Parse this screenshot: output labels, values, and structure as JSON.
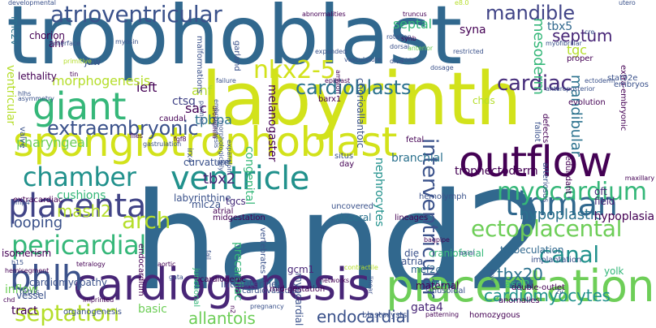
{
  "palette": {
    "dark_purple": "#440154",
    "indigo": "#3b528b",
    "steel_blue": "#31688e",
    "teal": "#21918c",
    "sea_green": "#35b779",
    "light_green": "#90d743",
    "yellow": "#fde725"
  },
  "words": [
    {
      "text": "trophoblast",
      "color": "#31688e"
    },
    {
      "text": "labyrinth",
      "color": "#d2e21b"
    },
    {
      "text": "hand2",
      "color": "#31688e"
    },
    {
      "text": "spongiotrophoblast",
      "color": "#d2e21b"
    },
    {
      "text": "cardiogenesis",
      "color": "#482677"
    },
    {
      "text": "placentation",
      "color": "#6ece58"
    },
    {
      "text": "outflow",
      "color": "#440154"
    },
    {
      "text": "ventricle",
      "color": "#21918c"
    },
    {
      "text": "tinman",
      "color": "#31688e"
    },
    {
      "text": "giant",
      "color": "#35b779"
    },
    {
      "text": "atrioventricular",
      "color": "#3b528b"
    },
    {
      "text": "myocardium",
      "color": "#35b779"
    },
    {
      "text": "placenta",
      "color": "#414487"
    },
    {
      "text": "chamber",
      "color": "#21918c"
    },
    {
      "text": "bhlh",
      "color": "#3b528b"
    },
    {
      "text": "pericardial",
      "color": "#35b779"
    },
    {
      "text": "ectoplacental",
      "color": "#6ece58"
    },
    {
      "text": "nkx2-5",
      "color": "#d2e21b"
    },
    {
      "text": "mandible",
      "color": "#414487"
    },
    {
      "text": "cardioblasts",
      "color": "#2c728e"
    },
    {
      "text": "extraembryonic",
      "color": "#3b528b"
    },
    {
      "text": "septation",
      "color": "#b5de2b"
    },
    {
      "text": "arch",
      "color": "#b5de2b"
    },
    {
      "text": "interventricular",
      "color": "#3b528b"
    },
    {
      "text": "canal",
      "color": "#21918c"
    },
    {
      "text": "cardiac",
      "color": "#472d7b"
    },
    {
      "text": "septum",
      "color": "#482677"
    },
    {
      "text": "tbx20",
      "color": "#2c728e"
    },
    {
      "text": "cardiomyocytes",
      "color": "#21918c"
    },
    {
      "text": "endocardial",
      "color": "#3b528b"
    },
    {
      "text": "allantois",
      "color": "#6ece58"
    },
    {
      "text": "hypoplastic",
      "color": "#2c728e"
    },
    {
      "text": "looping",
      "color": "#3b528b"
    },
    {
      "text": "mash2",
      "color": "#b5de2b"
    },
    {
      "text": "tbx2",
      "color": "#482677"
    },
    {
      "text": "mesoderm",
      "color": "#35b779"
    },
    {
      "text": "mandibular",
      "color": "#2c728e"
    },
    {
      "text": "tbx5",
      "color": "#31688e"
    },
    {
      "text": "syna",
      "color": "#440154"
    },
    {
      "text": "septal",
      "color": "#35b779"
    },
    {
      "text": "tgc",
      "color": "#b5de2b"
    },
    {
      "text": "left",
      "color": "#440154"
    },
    {
      "text": "ctsq",
      "color": "#414487"
    },
    {
      "text": "anf",
      "color": "#b5de2b"
    },
    {
      "text": "tpbpa",
      "color": "#2c728e"
    },
    {
      "text": "morphogenesis",
      "color": "#b5de2b"
    },
    {
      "text": "pharyngeal",
      "color": "#6ece58"
    },
    {
      "text": "sac",
      "color": "#440154"
    },
    {
      "text": "branchial",
      "color": "#2c728e"
    },
    {
      "text": "trophectoderm",
      "color": "#440154"
    },
    {
      "text": "nephrocytes",
      "color": "#21918c"
    },
    {
      "text": "cushions",
      "color": "#35b779"
    },
    {
      "text": "labyrinthine",
      "color": "#3b528b"
    },
    {
      "text": "tgcs",
      "color": "#472d7b"
    },
    {
      "text": "mlc2a",
      "color": "#3b528b"
    },
    {
      "text": "visceral",
      "color": "#2c728e"
    },
    {
      "text": "oft",
      "color": "#482677"
    },
    {
      "text": "field",
      "color": "#482677"
    },
    {
      "text": "hypoplasia",
      "color": "#440154"
    },
    {
      "text": "trabeculation",
      "color": "#31688e"
    },
    {
      "text": "die",
      "color": "#3b528b"
    },
    {
      "text": "craniofacial",
      "color": "#35b779"
    },
    {
      "text": "tube",
      "color": "#35b779"
    },
    {
      "text": "ascl2",
      "color": "#35b779"
    },
    {
      "text": "mef2c",
      "color": "#31688e"
    },
    {
      "text": "atria",
      "color": "#3b528b"
    },
    {
      "text": "maternal",
      "color": "#440154"
    },
    {
      "text": "yolk",
      "color": "#35b779"
    },
    {
      "text": "gata4",
      "color": "#482677"
    },
    {
      "text": "gcm1",
      "color": "#482677"
    },
    {
      "text": "precardiac",
      "color": "#35b779"
    },
    {
      "text": "myocardial",
      "color": "#3b528b"
    },
    {
      "text": "cardiomyopathy",
      "color": "#3b528b"
    },
    {
      "text": "inflow",
      "color": "#6ece58"
    },
    {
      "text": "tract",
      "color": "#440154"
    },
    {
      "text": "vessel",
      "color": "#3b528b"
    },
    {
      "text": "basic",
      "color": "#6ece58"
    },
    {
      "text": "intrauterine",
      "color": "#3b528b"
    },
    {
      "text": "junctional",
      "color": "#35b779"
    },
    {
      "text": "isomerism",
      "color": "#440154"
    },
    {
      "text": "extracardiac",
      "color": "#440154"
    },
    {
      "text": "chorion",
      "color": "#440154"
    },
    {
      "text": "jaw",
      "color": "#3b528b"
    },
    {
      "text": "ahf",
      "color": "#440154"
    },
    {
      "text": "mlc2v",
      "color": "#2c728e"
    },
    {
      "text": "lethality",
      "color": "#440154"
    },
    {
      "text": "ventricular",
      "color": "#b5de2b"
    },
    {
      "text": "valve",
      "color": "#3b528b"
    },
    {
      "text": "congenital",
      "color": "#35b779"
    },
    {
      "text": "garland",
      "color": "#3b528b"
    },
    {
      "text": "malformations",
      "color": "#3b528b"
    },
    {
      "text": "melanogaster",
      "color": "#440154"
    },
    {
      "text": "barx1",
      "color": "#440154"
    },
    {
      "text": "chorioallantoic",
      "color": "#3b528b"
    },
    {
      "text": "vertebrates",
      "color": "#3b528b"
    },
    {
      "text": "curvature",
      "color": "#3b528b"
    },
    {
      "text": "atrial",
      "color": "#440154"
    },
    {
      "text": "midgestation",
      "color": "#440154"
    },
    {
      "text": "uncovered",
      "color": "#3b528b"
    },
    {
      "text": "chds",
      "color": "#b5de2b"
    },
    {
      "text": "proper",
      "color": "#440154"
    },
    {
      "text": "evolution",
      "color": "#440154"
    },
    {
      "text": "extra-embryonic",
      "color": "#440154"
    },
    {
      "text": "embryos",
      "color": "#3b528b"
    },
    {
      "text": "stat92e",
      "color": "#3b528b"
    },
    {
      "text": "arteriosus",
      "color": "#3b528b"
    },
    {
      "text": "fallot",
      "color": "#3b528b"
    },
    {
      "text": "defects",
      "color": "#440154"
    },
    {
      "text": "situs",
      "color": "#3b528b"
    },
    {
      "text": "day",
      "color": "#440154"
    },
    {
      "text": "fetal",
      "color": "#440154"
    },
    {
      "text": "hemolymph",
      "color": "#3b528b"
    },
    {
      "text": "lineages",
      "color": "#440154"
    },
    {
      "text": "cardiogenic",
      "color": "#440154"
    },
    {
      "text": "cardiovascular",
      "color": "#3b528b"
    },
    {
      "text": "mid-gestation",
      "color": "#440154"
    },
    {
      "text": "sinusoidal",
      "color": "#3b528b"
    },
    {
      "text": "double-outlet",
      "color": "#440154"
    },
    {
      "text": "implantation",
      "color": "#3b528b"
    },
    {
      "text": "homozygous",
      "color": "#440154"
    },
    {
      "text": "anomalies",
      "color": "#440154"
    },
    {
      "text": "blastocysts",
      "color": "#3b528b"
    },
    {
      "text": "organogenesis",
      "color": "#3b528b"
    },
    {
      "text": "endocardium",
      "color": "#440154"
    },
    {
      "text": "hemisegment",
      "color": "#440154"
    },
    {
      "text": "flies",
      "color": "#440154"
    },
    {
      "text": "gastrulation",
      "color": "#3b528b"
    },
    {
      "text": "h15",
      "color": "#3b528b"
    },
    {
      "text": "tetralogy",
      "color": "#440154"
    },
    {
      "text": "fetus",
      "color": "#3b528b"
    },
    {
      "text": "chd",
      "color": "#440154"
    },
    {
      "text": "aortic",
      "color": "#440154"
    },
    {
      "text": "contractile",
      "color": "#b5de2b"
    },
    {
      "text": "networks",
      "color": "#440154"
    },
    {
      "text": "linear",
      "color": "#3b528b"
    },
    {
      "text": "patterning",
      "color": "#440154"
    },
    {
      "text": "layer",
      "color": "#3b528b"
    },
    {
      "text": "pregnancy",
      "color": "#3b528b"
    },
    {
      "text": "hlhs",
      "color": "#3b528b"
    },
    {
      "text": "fgf8",
      "color": "#440154"
    },
    {
      "text": "irx4",
      "color": "#3b528b"
    },
    {
      "text": "myosin",
      "color": "#3b528b"
    },
    {
      "text": "interface",
      "color": "#3b528b"
    },
    {
      "text": "developmental",
      "color": "#3b528b"
    },
    {
      "text": "truncus",
      "color": "#440154"
    },
    {
      "text": "rotation",
      "color": "#3b528b"
    },
    {
      "text": "synb",
      "color": "#440154"
    },
    {
      "text": "myofibrillar",
      "color": "#3b528b"
    },
    {
      "text": "dosage",
      "color": "#3b528b"
    },
    {
      "text": "zone",
      "color": "#3b528b"
    },
    {
      "text": "amnion",
      "color": "#440154"
    },
    {
      "text": "vasculature",
      "color": "#3b528b"
    },
    {
      "text": "failure",
      "color": "#3b528b"
    },
    {
      "text": "drosophila",
      "color": "#440154"
    },
    {
      "text": "morphologically",
      "color": "#3b528b"
    },
    {
      "text": "heart",
      "color": "#3b528b"
    },
    {
      "text": "expansion",
      "color": "#3b528b"
    },
    {
      "text": "pannier",
      "color": "#3b528b"
    },
    {
      "text": "asymmetry",
      "color": "#3b528b"
    },
    {
      "text": "ectoderm",
      "color": "#3b528b"
    },
    {
      "text": "redundant",
      "color": "#440154"
    },
    {
      "text": "anteroposterior",
      "color": "#3b528b"
    },
    {
      "text": "cre",
      "color": "#3b528b"
    },
    {
      "text": "e8.0",
      "color": "#b5de2b"
    },
    {
      "text": "utero",
      "color": "#3b528b"
    },
    {
      "text": "expanded",
      "color": "#3b528b"
    },
    {
      "text": "anterior",
      "color": "#6ece58"
    },
    {
      "text": "dorsal",
      "color": "#3b528b"
    },
    {
      "text": "restricted",
      "color": "#3b528b"
    },
    {
      "text": "div6",
      "color": "#3b528b"
    },
    {
      "text": "epiblast",
      "color": "#440154"
    },
    {
      "text": "primitive",
      "color": "#b5de2b"
    },
    {
      "text": "tin",
      "color": "#440154"
    },
    {
      "text": "caudal",
      "color": "#440154"
    },
    {
      "text": "maxillary",
      "color": "#440154"
    },
    {
      "text": "axial",
      "color": "#3b528b"
    },
    {
      "text": "bagpipe",
      "color": "#440154"
    },
    {
      "text": "abnormalities",
      "color": "#440154"
    },
    {
      "text": "embryogenesis",
      "color": "#3b528b"
    },
    {
      "text": "2v",
      "color": "#3b528b"
    },
    {
      "text": "fail",
      "color": "#3b528b"
    },
    {
      "text": "gata",
      "color": "#3b528b"
    },
    {
      "text": "bmp4",
      "color": "#3b528b"
    },
    {
      "text": "n2",
      "color": "#440154"
    },
    {
      "text": "imprinted",
      "color": "#440154"
    }
  ]
}
